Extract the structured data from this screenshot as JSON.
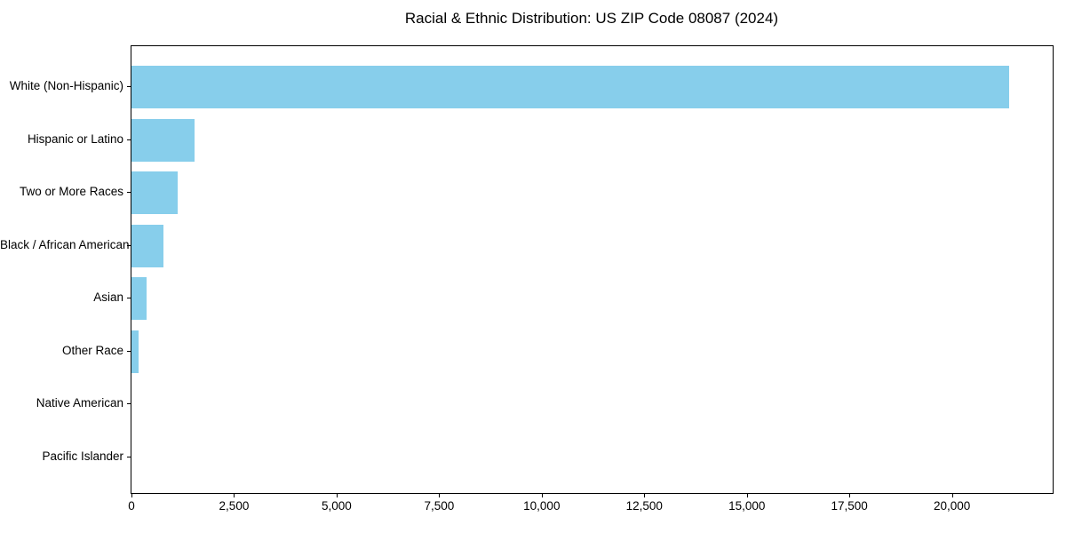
{
  "chart_data": {
    "type": "bar",
    "orientation": "horizontal",
    "title": "Racial & Ethnic Distribution: US ZIP Code 08087 (2024)",
    "categories": [
      "White (Non-Hispanic)",
      "Hispanic or Latino",
      "Two or More Races",
      "Black / African American",
      "Asian",
      "Other Race",
      "Native American",
      "Pacific Islander"
    ],
    "values": [
      21400,
      1530,
      1130,
      780,
      375,
      165,
      0,
      0
    ],
    "xlabel": "",
    "ylabel": "",
    "xlim": [
      0,
      22455
    ],
    "x_ticks": [
      0,
      2500,
      5000,
      7500,
      10000,
      12500,
      15000,
      17500,
      20000
    ],
    "x_tick_labels": [
      "0",
      "2,500",
      "5,000",
      "7,500",
      "10,000",
      "12,500",
      "15,000",
      "17,500",
      "20,000"
    ],
    "bar_color": "#87CEEB",
    "background_color": "#ffffff",
    "frame_color": "#000000",
    "grid": false,
    "legend": null
  }
}
